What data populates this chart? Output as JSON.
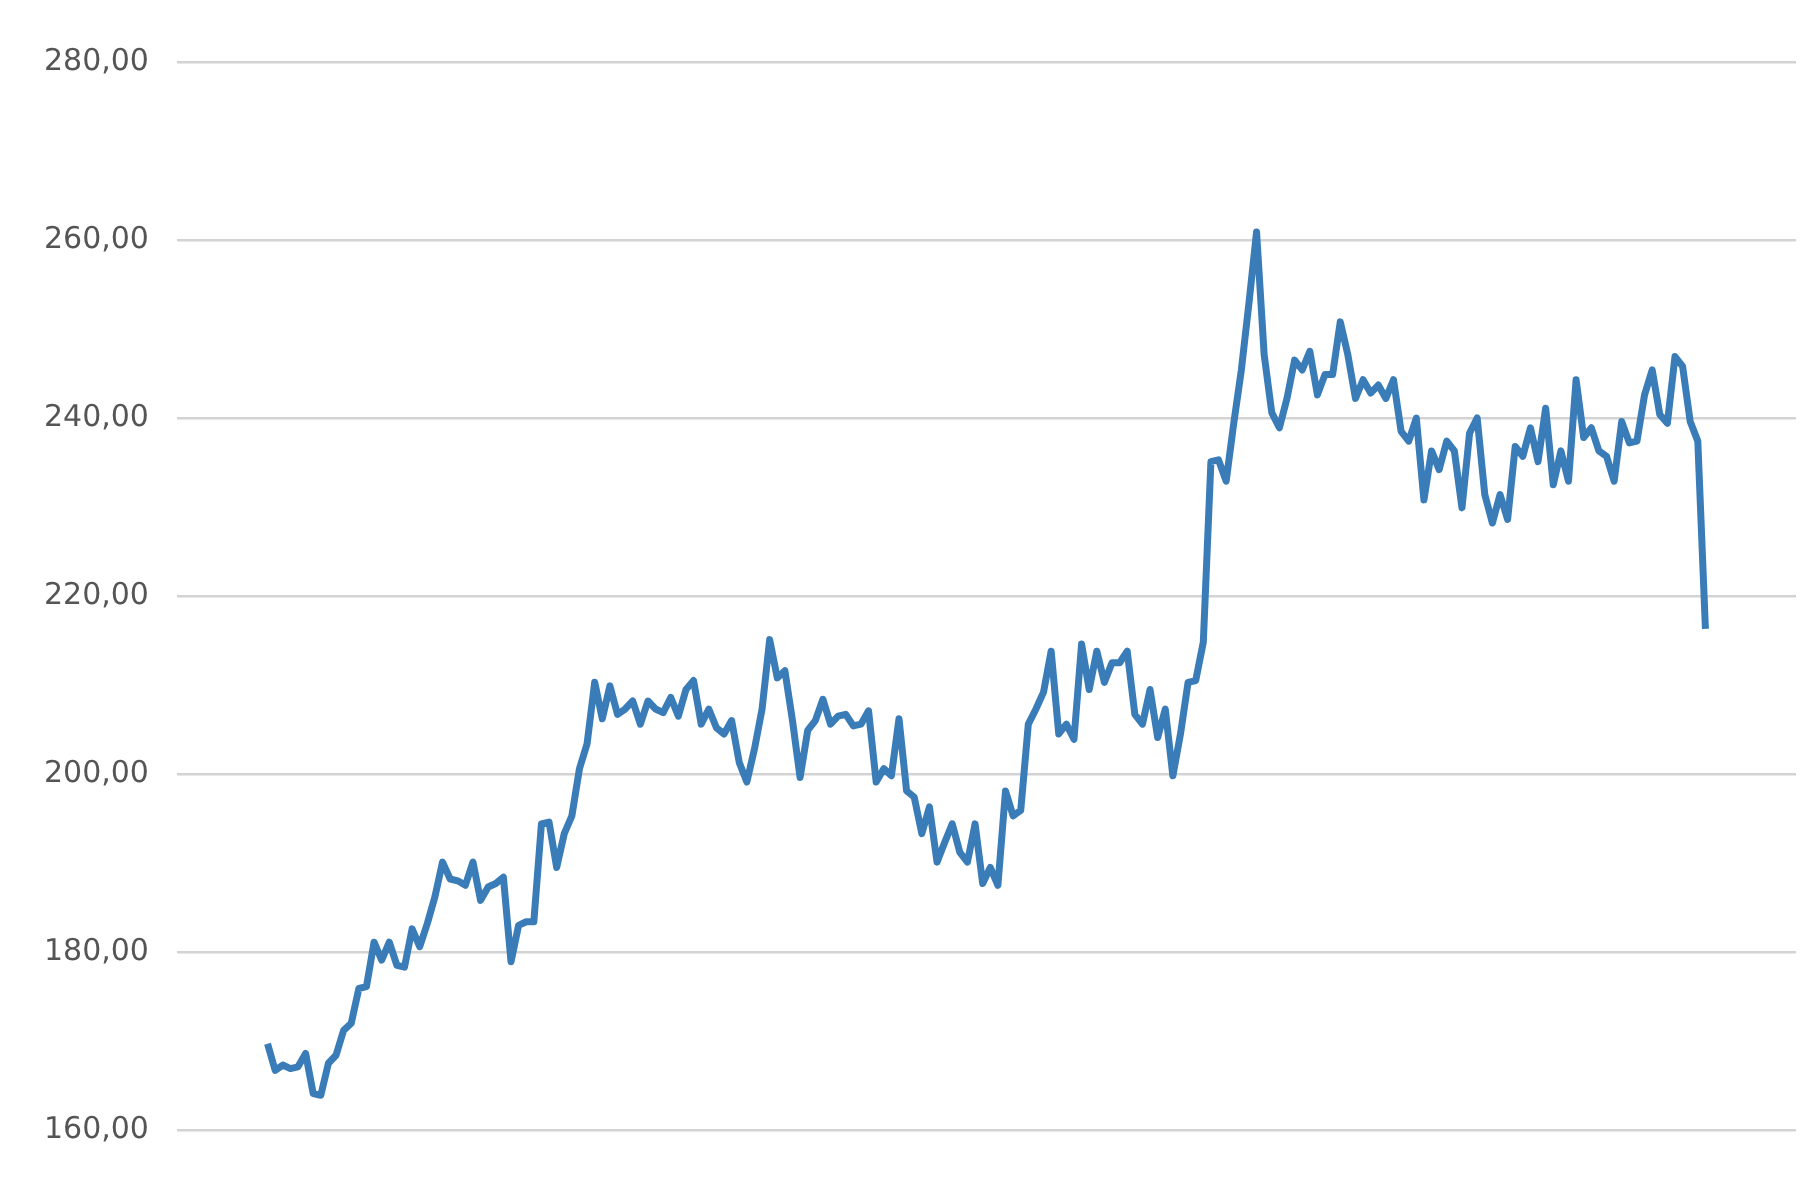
{
  "chart_data": {
    "type": "line",
    "categories": [
      null,
      null,
      null,
      null,
      null,
      null,
      null,
      null,
      null,
      null,
      null,
      null,
      null,
      null,
      null,
      null,
      null,
      null,
      null,
      null,
      null,
      null,
      null,
      null,
      null,
      null,
      null,
      null,
      null,
      null,
      null,
      null,
      null,
      null,
      null,
      null,
      null,
      null,
      null,
      null,
      null,
      null,
      null,
      null,
      null,
      null,
      null,
      null,
      null,
      null,
      null,
      null,
      null,
      null,
      null,
      null,
      null,
      null,
      null,
      null,
      null,
      null,
      null,
      null,
      null,
      null,
      null,
      null,
      null,
      null,
      null,
      null,
      null,
      null,
      null,
      null,
      null,
      null,
      null,
      null,
      null,
      null,
      null,
      null,
      null,
      null,
      null,
      null,
      null,
      null,
      null,
      null,
      null,
      null,
      null,
      null,
      null,
      null,
      null,
      null,
      null,
      null,
      null,
      null,
      null,
      null,
      null,
      null,
      null,
      null,
      null,
      null,
      null,
      null,
      null,
      null,
      null,
      null,
      null,
      null,
      null,
      null,
      null,
      null,
      null,
      null,
      null,
      null,
      null,
      null,
      null,
      null,
      null,
      null,
      null,
      null,
      null,
      null,
      null,
      null,
      null,
      null,
      null,
      null,
      null,
      null,
      null,
      null,
      null,
      null,
      null,
      null,
      null,
      null,
      null,
      null,
      null,
      null,
      null,
      null,
      null,
      null,
      null,
      null,
      null,
      null,
      null,
      null,
      null,
      null,
      null,
      null,
      null,
      null,
      null,
      null,
      null,
      null,
      null,
      null,
      null,
      null,
      null,
      null,
      null,
      null,
      null,
      null,
      null,
      null
    ],
    "series": [
      {
        "color": "#3a7cb8",
        "values": [
          169.7,
          166.7,
          167.3,
          166.9,
          167.1,
          168.6,
          164.1,
          163.9,
          167.5,
          168.4,
          171.2,
          172,
          175.9,
          176.1,
          181.1,
          179.1,
          181.1,
          178.5,
          178.3,
          182.6,
          180.6,
          183.2,
          186.2,
          190.1,
          188.2,
          188,
          187.5,
          190.1,
          185.8,
          187.3,
          187.7,
          188.4,
          178.9,
          183,
          183.4,
          183.4,
          194.4,
          194.6,
          189.5,
          193.3,
          195.3,
          200.6,
          203.4,
          210.3,
          206.2,
          209.9,
          206.7,
          207.3,
          208.2,
          205.6,
          208.2,
          207.3,
          206.9,
          208.6,
          206.5,
          209.5,
          210.5,
          205.6,
          207.3,
          205.2,
          204.5,
          206,
          201.3,
          199.1,
          202.8,
          207.3,
          215.1,
          210.8,
          211.6,
          206,
          199.6,
          204.9,
          206,
          208.4,
          205.6,
          206.5,
          206.7,
          205.4,
          205.6,
          207.1,
          199.1,
          200.6,
          199.8,
          206.2,
          198.1,
          197.4,
          193.3,
          196.3,
          190.1,
          192.3,
          194.4,
          191.2,
          190.1,
          194.4,
          187.7,
          189.5,
          187.5,
          198.1,
          195.3,
          195.9,
          205.6,
          207.3,
          209.2,
          213.8,
          204.5,
          205.6,
          203.9,
          214.6,
          209.5,
          213.8,
          210.3,
          212.5,
          212.5,
          213.8,
          206.7,
          205.6,
          209.5,
          204.1,
          207.3,
          199.8,
          204.5,
          210.3,
          210.5,
          214.8,
          235.1,
          235.3,
          232.9,
          239.4,
          245.4,
          252.9,
          260.9,
          247.1,
          240.6,
          238.9,
          242.2,
          246.5,
          245.4,
          247.5,
          242.6,
          244.9,
          244.9,
          250.8,
          247.1,
          242.2,
          244.3,
          242.8,
          243.7,
          242.2,
          244.3,
          238.5,
          237.4,
          240,
          230.8,
          236.3,
          234.2,
          237.4,
          236.3,
          229.9,
          238.3,
          240,
          231.4,
          228.2,
          231.4,
          228.6,
          236.8,
          235.7,
          238.9,
          235.1,
          241.1,
          232.5,
          236.3,
          232.9,
          244.3,
          237.8,
          238.9,
          236.3,
          235.7,
          232.9,
          239.6,
          237.2,
          237.4,
          242.6,
          245.4,
          240.4,
          239.4,
          246.9,
          245.8,
          239.6,
          237.4,
          216.3
        ]
      }
    ],
    "ylim": [
      160,
      280
    ],
    "yticks": [
      {
        "value": 160,
        "label": "160,00"
      },
      {
        "value": 180,
        "label": "180,00"
      },
      {
        "value": 200,
        "label": "200,00"
      },
      {
        "value": 220,
        "label": "220,00"
      },
      {
        "value": 240,
        "label": "240,00"
      },
      {
        "value": 260,
        "label": "260,00"
      },
      {
        "value": 280,
        "label": "280,00"
      }
    ],
    "grid": "y",
    "legend": false,
    "tick_labels": "y",
    "marker": "none",
    "line_style": "solid"
  }
}
